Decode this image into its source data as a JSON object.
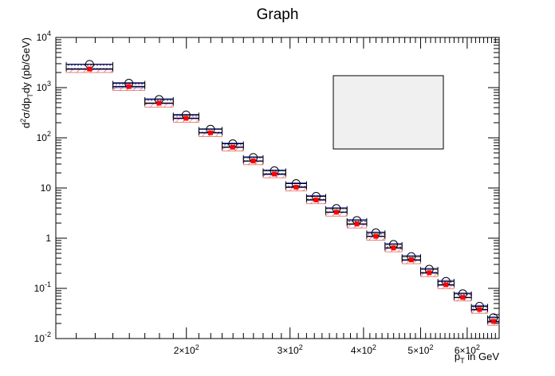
{
  "chart_data": {
    "type": "scatter",
    "title": "Graph",
    "xlabel": {
      "base": "p",
      "sub": "T",
      "rest": " in GeV"
    },
    "ylabel": {
      "d": "d",
      "sup": "2",
      "s1": "σ/dp",
      "sub": "T",
      "s2": "dy (pb/GeV)"
    },
    "x_scale": "log",
    "y_scale": "log",
    "xlim": [
      120,
      680
    ],
    "ylim": [
      0.01,
      10000
    ],
    "x_tick_labels": [
      {
        "value": 200,
        "mant": "2×10",
        "exp": "2"
      },
      {
        "value": 300,
        "mant": "3×10",
        "exp": "2"
      },
      {
        "value": 400,
        "mant": "4×10",
        "exp": "2"
      },
      {
        "value": 500,
        "mant": "5×10",
        "exp": "2"
      },
      {
        "value": 600,
        "mant": "6×10",
        "exp": "2"
      }
    ],
    "y_tick_labels": [
      {
        "value": 0.01,
        "mant": "10",
        "exp": "-2"
      },
      {
        "value": 0.1,
        "mant": "10",
        "exp": "-1"
      },
      {
        "value": 1,
        "mant": "1",
        "exp": ""
      },
      {
        "value": 10,
        "mant": "10",
        "exp": ""
      },
      {
        "value": 100,
        "mant": "10",
        "exp": "2"
      },
      {
        "value": 1000,
        "mant": "10",
        "exp": "3"
      },
      {
        "value": 10000,
        "mant": "10",
        "exp": "4"
      }
    ],
    "bins": [
      [
        125,
        150
      ],
      [
        150,
        170
      ],
      [
        170,
        190
      ],
      [
        190,
        210
      ],
      [
        210,
        230
      ],
      [
        230,
        250
      ],
      [
        250,
        270
      ],
      [
        270,
        295
      ],
      [
        295,
        320
      ],
      [
        320,
        345
      ],
      [
        345,
        375
      ],
      [
        375,
        405
      ],
      [
        405,
        435
      ],
      [
        435,
        465
      ],
      [
        465,
        500
      ],
      [
        500,
        535
      ],
      [
        535,
        570
      ],
      [
        570,
        610
      ],
      [
        610,
        650
      ],
      [
        650,
        680
      ]
    ],
    "series": [
      {
        "marker": "open-circle",
        "color": "#000000",
        "band_color": "#1e2ad0",
        "values": [
          2900.0,
          1220.0,
          580.0,
          285.0,
          148.0,
          76.0,
          40.5,
          22.0,
          12.2,
          6.8,
          3.9,
          2.25,
          1.28,
          0.75,
          0.43,
          0.24,
          0.138,
          0.078,
          0.044,
          0.026
        ],
        "band_lo": [
          2300.0,
          1000.0,
          480.0,
          240.0,
          124.0,
          64.0,
          34.0,
          18.5,
          10.2,
          5.7,
          3.25,
          1.88,
          1.07,
          0.63,
          0.36,
          0.2,
          0.115,
          0.065,
          0.037,
          0.021
        ],
        "band_hi": [
          2950.0,
          1260.0,
          600.0,
          295.0,
          152.0,
          79.0,
          42.0,
          23.0,
          12.7,
          7.1,
          4.05,
          2.35,
          1.33,
          0.78,
          0.45,
          0.25,
          0.144,
          0.081,
          0.046,
          0.027
        ]
      },
      {
        "marker": "filled-square",
        "color": "#ff0000",
        "band_color": "#d83a2a",
        "values": [
          2350.0,
          1050.0,
          490.0,
          245.0,
          126.0,
          65.0,
          34.5,
          19.0,
          10.4,
          5.8,
          3.3,
          1.92,
          1.09,
          0.64,
          0.37,
          0.205,
          0.118,
          0.066,
          0.038,
          0.022
        ],
        "band_lo": [
          2000.0,
          880.0,
          410.0,
          205.0,
          106.0,
          54.5,
          29.0,
          16.0,
          8.7,
          4.85,
          2.76,
          1.6,
          0.91,
          0.535,
          0.31,
          0.172,
          0.099,
          0.056,
          0.032,
          0.0185
        ],
        "band_hi": [
          2400.0,
          1070.0,
          500.0,
          250.0,
          129.0,
          66.5,
          35.0,
          19.3,
          10.6,
          5.9,
          3.35,
          1.95,
          1.11,
          0.65,
          0.375,
          0.208,
          0.12,
          0.067,
          0.0385,
          0.0223
        ]
      }
    ],
    "grid": false,
    "legend_box": true
  }
}
